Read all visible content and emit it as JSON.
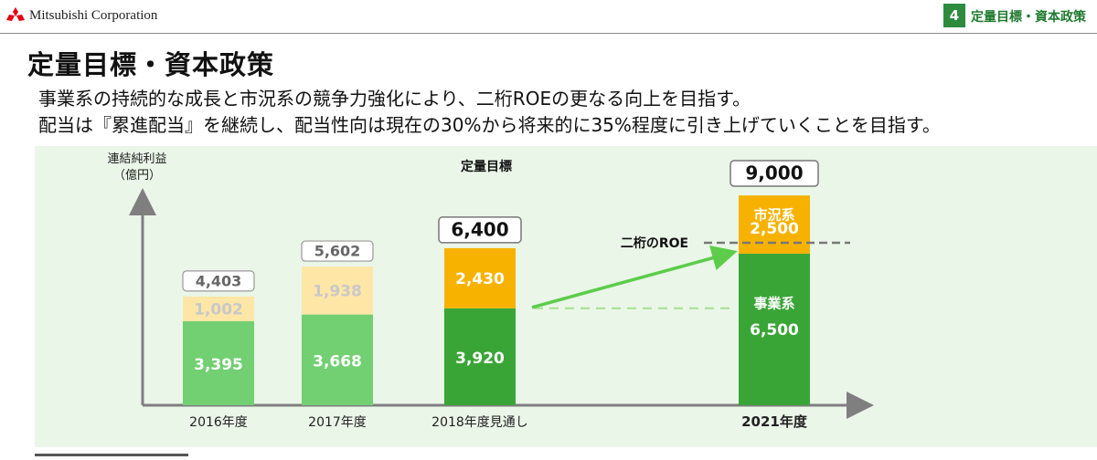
{
  "header": {
    "company": "Mitsubishi Corporation",
    "section_number": "4",
    "section_title": "定量目標・資本政策",
    "logo_icon": "three-diamonds-icon"
  },
  "page": {
    "title": "定量目標・資本政策",
    "lines": [
      "事業系の持続的な成長と市況系の競争力強化により、二桁ROEの更なる向上を目指す。",
      "配当は『累進配当』を継続し、配当性向は現在の30%から将来的に35%程度に引き上げていくことを目指す。"
    ]
  },
  "chart_data": {
    "type": "bar",
    "title": "定量目標",
    "ylabel": "連結純利益\n（億円）",
    "categories": [
      "2016年度",
      "2017年度",
      "2018年度見通し",
      "2021年度"
    ],
    "series": [
      {
        "name": "事業系",
        "values": [
          3395,
          3668,
          3920,
          6500
        ]
      },
      {
        "name": "市況系",
        "values": [
          1002,
          1938,
          2430,
          2500
        ]
      }
    ],
    "totals": [
      4403,
      5602,
      6400,
      9000
    ],
    "value_labels": {
      "bottom": [
        "3,395",
        "3,668",
        "3,920",
        "6,500"
      ],
      "top": [
        "1,002",
        "1,938",
        "2,430",
        "2,500"
      ],
      "totals": [
        "4,403",
        "5,602",
        "6,400",
        "9,000"
      ]
    },
    "annotations": {
      "roe_line": "二桁のROE"
    },
    "ylim": [
      0,
      9000
    ],
    "grid": false,
    "colors": {
      "past_bottom": "#72cf72",
      "past_top": "#fde6a6",
      "past_top_text": "#c8c8c8",
      "future_bottom": "#3aa537",
      "future_top": "#f7b200",
      "arrow": "#5ccc4a",
      "dashed_ref": "#a6e08e",
      "roe_dashed": "#777777",
      "axis": "#7f7f7f"
    }
  }
}
